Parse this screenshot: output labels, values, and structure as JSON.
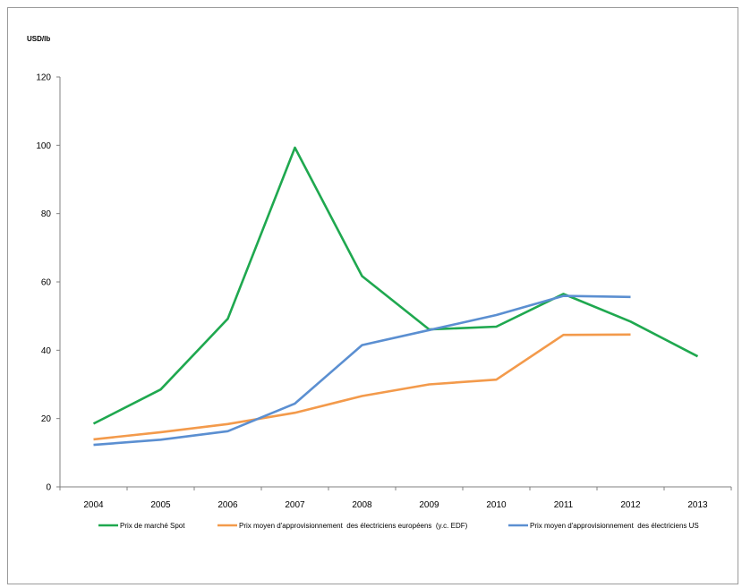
{
  "chart_data": {
    "type": "line",
    "ylabel": "USD/lb",
    "ylim": [
      0,
      120
    ],
    "yticks": [
      0,
      20,
      40,
      60,
      80,
      100,
      120
    ],
    "grid": false,
    "legend_position": "bottom",
    "categories": [
      "2004",
      "2005",
      "2006",
      "2007",
      "2008",
      "2009",
      "2010",
      "2011",
      "2012",
      "2013"
    ],
    "series": [
      {
        "name": "Prix de marché Spot",
        "color": "#1fa84f",
        "values": [
          18.5,
          28.5,
          49.2,
          99.3,
          61.7,
          46.1,
          46.9,
          56.5,
          48.4,
          38.2
        ]
      },
      {
        "name": "Prix moyen d'approvisionnement  des électriciens européens  (y.c. EDF)",
        "color": "#f39a4b",
        "values": [
          13.9,
          16.0,
          18.4,
          21.7,
          26.6,
          30.0,
          31.4,
          44.5,
          44.6,
          null
        ]
      },
      {
        "name": "Prix moyen d'approvisionnement  des électriciens US",
        "color": "#5b8fd1",
        "values": [
          12.3,
          13.8,
          16.3,
          24.4,
          41.5,
          45.9,
          50.3,
          55.9,
          55.6,
          null
        ]
      }
    ]
  }
}
